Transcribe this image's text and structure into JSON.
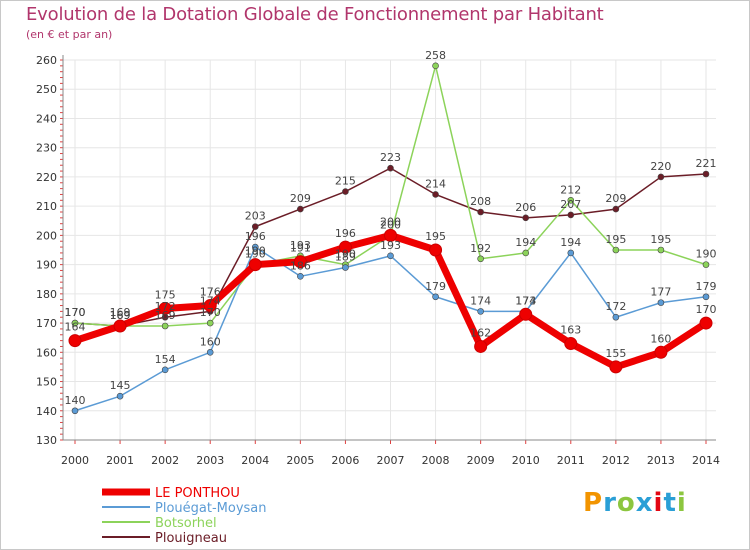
{
  "header": {
    "title": "Evolution de la Dotation Globale de Fonctionnement par Habitant",
    "subtitle": "(en € et par an)"
  },
  "logo": {
    "letters": [
      "P",
      "r",
      "o",
      "x",
      "i",
      "t",
      "i"
    ],
    "colors": [
      "#f29400",
      "#2a9fd6",
      "#8cc63f",
      "#2a9fd6",
      "#e30613",
      "#2a9fd6",
      "#8cc63f"
    ]
  },
  "chart_data": {
    "type": "line",
    "x": [
      "2000",
      "2001",
      "2002",
      "2003",
      "2004",
      "2005",
      "2006",
      "2007",
      "2008",
      "2009",
      "2010",
      "2011",
      "2012",
      "2013",
      "2014"
    ],
    "ylim": [
      130,
      260
    ],
    "yticks": [
      130,
      140,
      150,
      160,
      170,
      180,
      190,
      200,
      210,
      220,
      230,
      240,
      250,
      260
    ],
    "grid": true,
    "legend_position": "bottom-left",
    "series": [
      {
        "name": "Plouigneau",
        "color": "#6b1d27",
        "values": [
          170,
          169,
          172,
          174,
          203,
          209,
          215,
          223,
          214,
          208,
          206,
          207,
          209,
          220,
          221
        ]
      },
      {
        "name": "Botsorhel",
        "color": "#8cd35a",
        "values": [
          170,
          169,
          169,
          170,
          190,
          193,
          190,
          200,
          258,
          192,
          194,
          212,
          195,
          195,
          190
        ]
      },
      {
        "name": "Plouégat-Moysan",
        "color": "#5b9bd5",
        "values": [
          140,
          145,
          154,
          160,
          196,
          186,
          189,
          193,
          179,
          174,
          174,
          194,
          172,
          177,
          179
        ]
      },
      {
        "name": "LE PONTHOU",
        "color": "#ee0000",
        "values": [
          164,
          169,
          175,
          176,
          190,
          191,
          196,
          200,
          195,
          162,
          173,
          163,
          155,
          160,
          170
        ]
      }
    ]
  }
}
